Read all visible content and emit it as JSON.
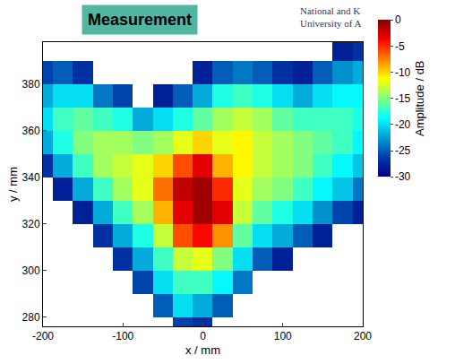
{
  "chart_data": {
    "type": "heatmap",
    "title": "Measurement",
    "annotations": [
      "National and K",
      "University of A"
    ],
    "x_label": "x / mm",
    "y_label": "y / mm",
    "x": [
      -200,
      -175,
      -150,
      -125,
      -100,
      -75,
      -50,
      -25,
      0,
      25,
      50,
      75,
      100,
      125,
      150,
      175,
      200
    ],
    "y": [
      275,
      285,
      295,
      305,
      315,
      325,
      335,
      345,
      355,
      365,
      375,
      385,
      395
    ],
    "z": [
      [
        null,
        null,
        null,
        null,
        null,
        null,
        null,
        -26,
        -27,
        null,
        null,
        null,
        null,
        null,
        null,
        null,
        null
      ],
      [
        null,
        null,
        null,
        null,
        null,
        null,
        -25,
        -20,
        -22,
        -25,
        null,
        null,
        null,
        null,
        null,
        null,
        null
      ],
      [
        null,
        null,
        null,
        null,
        null,
        -26,
        -20,
        -17,
        -17,
        -19,
        -24,
        null,
        null,
        null,
        null,
        null,
        null
      ],
      [
        null,
        null,
        null,
        null,
        -27,
        -22,
        -17,
        -13,
        -12,
        -15,
        -20,
        -25,
        -28,
        null,
        null,
        null,
        null
      ],
      [
        null,
        null,
        null,
        -27,
        -22,
        -18,
        -13,
        -6,
        -4,
        -8,
        -16,
        -20,
        -22,
        -25,
        -28,
        null,
        null
      ],
      [
        null,
        null,
        -28,
        -22,
        -17,
        -14,
        -9,
        -3,
        -1,
        -3,
        -13,
        -16,
        -18,
        -20,
        -23,
        -26,
        -28
      ],
      [
        null,
        -28,
        -22,
        -17,
        -14,
        -12,
        -7,
        -2,
        -1,
        -5,
        -12,
        -14,
        -15,
        -17,
        -19,
        -21,
        -24
      ],
      [
        -27,
        -22,
        -17,
        -14,
        -13,
        -12,
        -10,
        -6,
        -3,
        -9,
        -11,
        -13,
        -14,
        -15,
        -17,
        -19,
        -21
      ],
      [
        -22,
        -18,
        -15,
        -14,
        -14,
        -15,
        -14,
        -12,
        -10,
        -12,
        -11,
        -13,
        -14,
        -15,
        -16,
        -17,
        -19
      ],
      [
        -20,
        -17,
        -16,
        -17,
        -18,
        -22,
        -20,
        -18,
        -16,
        -14,
        -13,
        -14,
        -16,
        -17,
        -17,
        -17,
        -18
      ],
      [
        -22,
        -20,
        -20,
        -24,
        -26,
        null,
        -28,
        -25,
        -22,
        -18,
        -17,
        -18,
        -20,
        -22,
        -20,
        -19,
        -19
      ],
      [
        -26,
        -25,
        -27,
        null,
        null,
        null,
        null,
        null,
        -28,
        -25,
        -24,
        -25,
        -27,
        -28,
        -25,
        -23,
        -22
      ],
      [
        null,
        null,
        null,
        null,
        null,
        null,
        null,
        null,
        null,
        null,
        null,
        null,
        null,
        null,
        null,
        -28,
        -27
      ]
    ],
    "color": "Jet",
    "xlim": [
      -200,
      200
    ],
    "xticks": [
      -200,
      -100,
      0,
      100,
      200
    ],
    "ylim": [
      276,
      398
    ],
    "yticks": [
      280,
      300,
      320,
      340,
      360,
      380
    ],
    "colorbar": {
      "title": "Amplitude / dB",
      "range": [
        -30,
        0
      ],
      "ticks": [
        0,
        -5,
        -10,
        -15,
        -20,
        -25,
        -30
      ]
    },
    "grid": false
  }
}
